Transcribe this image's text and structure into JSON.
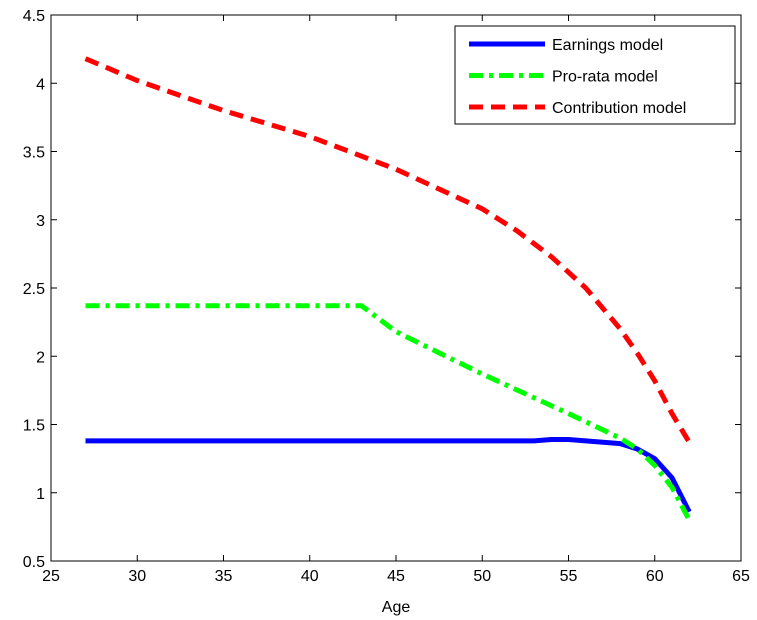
{
  "chart_data": {
    "type": "line",
    "title": "",
    "xlabel": "Age",
    "ylabel": "",
    "xlim": [
      25,
      65
    ],
    "ylim": [
      0.5,
      4.5
    ],
    "xticks": [
      25,
      30,
      35,
      40,
      45,
      50,
      55,
      60,
      65
    ],
    "yticks": [
      0.5,
      1,
      1.5,
      2,
      2.5,
      3,
      3.5,
      4,
      4.5
    ],
    "grid": false,
    "legend_position": "top-right",
    "series": [
      {
        "name": "Earnings model",
        "color": "#0000ff",
        "style": "solid",
        "x": [
          27,
          30,
          35,
          40,
          45,
          50,
          53,
          54,
          55,
          56,
          57,
          58,
          59,
          60,
          61,
          62
        ],
        "y": [
          1.38,
          1.38,
          1.38,
          1.38,
          1.38,
          1.38,
          1.38,
          1.39,
          1.39,
          1.38,
          1.37,
          1.36,
          1.32,
          1.25,
          1.11,
          0.86
        ]
      },
      {
        "name": "Pro-rata model",
        "color": "#00ff00",
        "style": "dashdot",
        "x": [
          27,
          30,
          35,
          40,
          43,
          45,
          50,
          55,
          58,
          59,
          60,
          61,
          62
        ],
        "y": [
          2.37,
          2.37,
          2.37,
          2.37,
          2.37,
          2.18,
          1.87,
          1.58,
          1.4,
          1.32,
          1.2,
          1.04,
          0.8
        ]
      },
      {
        "name": "Contribution model",
        "color": "#ff0000",
        "style": "dashed",
        "x": [
          27,
          30,
          35,
          40,
          45,
          50,
          52,
          54,
          56,
          58,
          59,
          60,
          61,
          62
        ],
        "y": [
          4.18,
          4.02,
          3.8,
          3.61,
          3.37,
          3.08,
          2.92,
          2.73,
          2.5,
          2.2,
          2.02,
          1.82,
          1.58,
          1.37
        ]
      }
    ]
  }
}
